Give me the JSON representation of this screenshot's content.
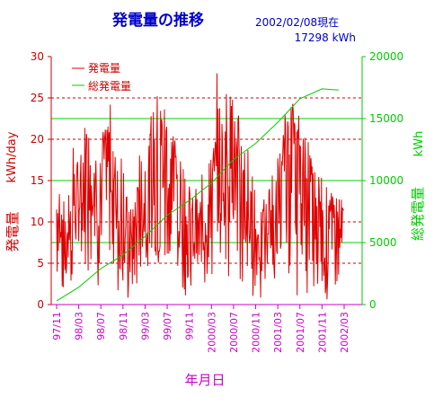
{
  "chart_data": {
    "type": "line",
    "title": "発電量の推移",
    "date_label": "2002/02/08現在",
    "total_label": "17298 kWh",
    "xlabel": "年月日",
    "ylabel_left_main": "発電量",
    "ylabel_left_unit": "kWh/day",
    "ylabel_right_main": "総発電量",
    "ylabel_right_unit": "kWh",
    "legend_position": "top-left",
    "grid": true,
    "ylim_left": [
      0,
      30
    ],
    "ylim_right": [
      0,
      20000
    ],
    "left_ticks": [
      "0",
      "5",
      "10",
      "15",
      "20",
      "25",
      "30"
    ],
    "right_ticks": [
      "0",
      "5000",
      "10000",
      "15000",
      "20000"
    ],
    "x_ticks": [
      "97/11",
      "98/03",
      "98/07",
      "98/11",
      "99/03",
      "99/07",
      "99/11",
      "2000/03",
      "2000/07",
      "2000/11",
      "2001/03",
      "2001/07",
      "2001/11",
      "2002/03"
    ],
    "series": [
      {
        "name": "発電量",
        "axis": "left",
        "color": "#e00000",
        "x": [
          "97/11",
          "97/12",
          "98/01",
          "98/02",
          "98/03",
          "98/04",
          "98/05",
          "98/06",
          "98/07",
          "98/08",
          "98/09",
          "98/10",
          "98/11",
          "98/12",
          "99/01",
          "99/02",
          "99/03",
          "99/04",
          "99/05",
          "99/06",
          "99/07",
          "99/08",
          "99/09",
          "99/10",
          "99/11",
          "99/12",
          "2000/01",
          "2000/02",
          "2000/03",
          "2000/04",
          "2000/05",
          "2000/06",
          "2000/07",
          "2000/08",
          "2000/09",
          "2000/10",
          "2000/11",
          "2000/12",
          "2001/01",
          "2001/02",
          "2001/03",
          "2001/04",
          "2001/05",
          "2001/06",
          "2001/07",
          "2001/08",
          "2001/09",
          "2001/10",
          "2001/11",
          "2001/12",
          "2002/01",
          "2002/02"
        ],
        "values": [
          11,
          6,
          10,
          12,
          13,
          16,
          17,
          12,
          15,
          18,
          13,
          10,
          8,
          7,
          10,
          12,
          14,
          17,
          19,
          18,
          17,
          14,
          12,
          10,
          9,
          8,
          10,
          12,
          14,
          17,
          19,
          18,
          16,
          13,
          12,
          9,
          8,
          7,
          10,
          11,
          13,
          16,
          18,
          17,
          16,
          14,
          11,
          9,
          8,
          9,
          10,
          10
        ],
        "min": [
          3,
          1,
          2,
          4,
          5,
          4,
          3,
          2,
          3,
          4,
          3,
          1,
          0,
          0,
          2,
          3,
          3,
          5,
          4,
          2,
          3,
          2,
          2,
          1,
          1,
          0,
          2,
          3,
          3,
          5,
          3,
          2,
          1,
          1,
          0,
          1,
          0,
          0,
          1,
          2,
          3,
          4,
          2,
          1,
          2,
          1,
          1,
          1,
          0,
          2,
          2,
          3
        ],
        "max": [
          15,
          13,
          14,
          20,
          21,
          22,
          21,
          20,
          21,
          22,
          20,
          18,
          16,
          13,
          16,
          19,
          22,
          25,
          24,
          24,
          22,
          21,
          19,
          16,
          15,
          14,
          16,
          19,
          22,
          28,
          26,
          25,
          22,
          21,
          20,
          16,
          14,
          13,
          14,
          17,
          20,
          23,
          24,
          23,
          21,
          20,
          18,
          16,
          15,
          14,
          13,
          12
        ]
      },
      {
        "name": "総発電量",
        "axis": "right",
        "color": "#00cc00",
        "x": [
          "97/11",
          "98/03",
          "98/07",
          "98/11",
          "99/03",
          "99/07",
          "99/11",
          "2000/03",
          "2000/07",
          "2000/11",
          "2001/03",
          "2001/07",
          "2001/11",
          "2002/02"
        ],
        "values": [
          300,
          1400,
          2900,
          4000,
          5500,
          7200,
          8400,
          9800,
          11700,
          13000,
          14700,
          16600,
          17400,
          17298
        ]
      }
    ]
  }
}
